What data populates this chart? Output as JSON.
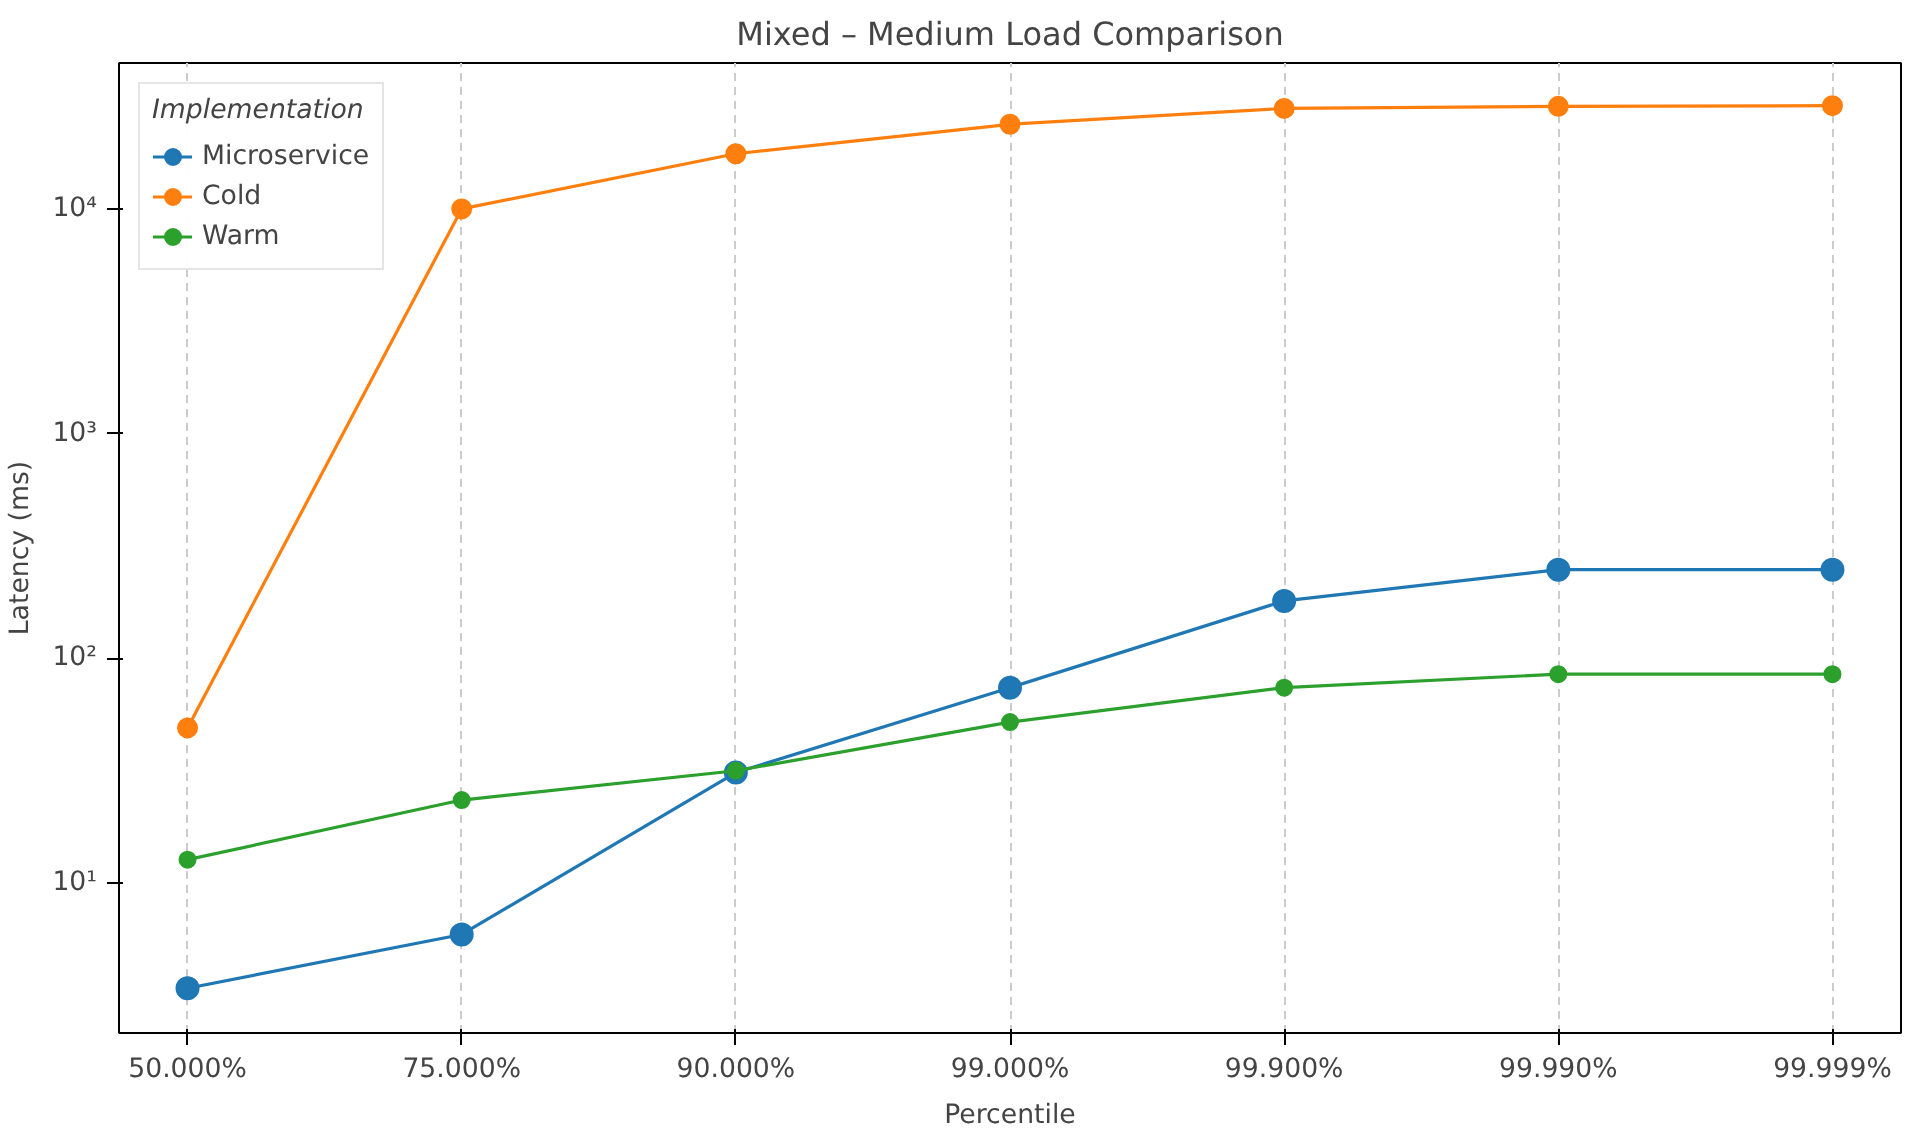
{
  "chart_data": {
    "type": "line",
    "title": "Mixed – Medium Load Comparison",
    "xlabel": "Percentile",
    "ylabel": "Latency (ms)",
    "legend_title": "Implementation",
    "categories": [
      "50.000%",
      "75.000%",
      "90.000%",
      "99.000%",
      "99.900%",
      "99.990%",
      "99.999%"
    ],
    "series": [
      {
        "name": "Microservice",
        "color": "#1f77b4",
        "values": [
          3.4,
          5.9,
          31,
          74,
          180,
          248,
          248
        ]
      },
      {
        "name": "Cold",
        "color": "#ff7f0e",
        "values": [
          49,
          10000,
          17600,
          23800,
          28000,
          28600,
          28800
        ]
      },
      {
        "name": "Warm",
        "color": "#2ca02c",
        "values": [
          12.7,
          23.4,
          31.6,
          52,
          74,
          85,
          85
        ]
      }
    ],
    "log": "y",
    "ylim": [
      2.15,
      44600
    ],
    "yticks": [
      {
        "value": 10,
        "label": "10¹"
      },
      {
        "value": 100,
        "label": "10²"
      },
      {
        "value": 1000,
        "label": "10³"
      },
      {
        "value": 10000,
        "label": "10⁴"
      }
    ],
    "grid": "x",
    "legend": "top left",
    "marker": "circle",
    "line_style": "solid"
  }
}
